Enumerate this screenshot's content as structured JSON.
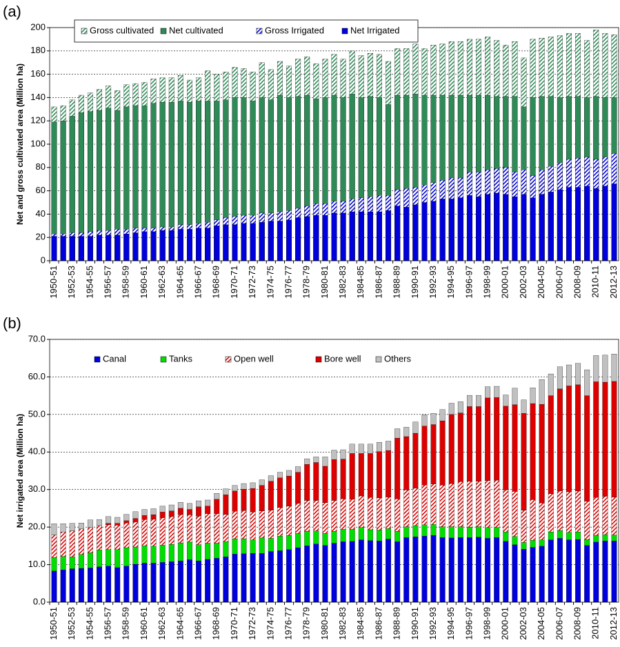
{
  "chart_data": [
    {
      "type": "bar",
      "barmode": "overlay",
      "panel_label": "(a)",
      "y_label": "Net and gross cultivated area (Million ha)",
      "categories": [
        "1950-51",
        null,
        "1952-53",
        null,
        "1954-55",
        null,
        "1956-57",
        null,
        "1958-59",
        null,
        "1960-61",
        null,
        "1962-63",
        null,
        "1964-65",
        null,
        "1966-67",
        null,
        "1968-69",
        null,
        "1970-71",
        null,
        "1972-73",
        null,
        "1974-75",
        null,
        "1976-77",
        null,
        "1978-79",
        null,
        "1980-81",
        null,
        "1982-83",
        null,
        "1984-85",
        null,
        "1986-87",
        null,
        "1988-89",
        null,
        "1990-91",
        null,
        "1992-93",
        null,
        "1994-95",
        null,
        "1996-97",
        null,
        "1998-99",
        null,
        "2000-01",
        null,
        "2002-03",
        null,
        "2004-05",
        null,
        "2006-07",
        null,
        "2008-09",
        null,
        "2010-11",
        null,
        "2012-13"
      ],
      "ylim": [
        0,
        200
      ],
      "yticks": [
        0,
        20,
        40,
        60,
        80,
        100,
        120,
        140,
        160,
        180,
        200
      ],
      "grid": true,
      "legend": "top",
      "legend_box": true,
      "series": [
        {
          "name": "Gross cultivated",
          "color": "#2e8b57",
          "hatched": true,
          "values": [
            132,
            133,
            138,
            142,
            144,
            147,
            150,
            146,
            151,
            152,
            153,
            156,
            157,
            157,
            159,
            155,
            157,
            163,
            160,
            162,
            166,
            165,
            162,
            170,
            164,
            171,
            167,
            173,
            175,
            169,
            173,
            177,
            173,
            180,
            176,
            178,
            177,
            171,
            182,
            182,
            186,
            182,
            185,
            186,
            188,
            188,
            190,
            190,
            192,
            189,
            185,
            188,
            174,
            190,
            191,
            192,
            193,
            195,
            195,
            189,
            198,
            195,
            194
          ]
        },
        {
          "name": "Net cultivated",
          "color": "#2e8b57",
          "hatched": false,
          "values": [
            119,
            120,
            124,
            127,
            128,
            129,
            131,
            129,
            132,
            133,
            133,
            135,
            136,
            136,
            137,
            136,
            137,
            137,
            137,
            138,
            140,
            140,
            137,
            140,
            138,
            142,
            140,
            141,
            142,
            139,
            140,
            142,
            140,
            143,
            140,
            141,
            140,
            134,
            142,
            142,
            143,
            142,
            142,
            142,
            142,
            142,
            142,
            142,
            142,
            141,
            141,
            141,
            132,
            140,
            141,
            141,
            140,
            141,
            141,
            140,
            141,
            140,
            140
          ]
        },
        {
          "name": "Gross Irrigated",
          "color": "#0000dd",
          "hatched": true,
          "values": [
            23,
            23,
            24,
            24,
            25,
            26,
            26,
            27,
            27,
            28,
            28,
            28,
            29,
            29,
            31,
            31,
            32,
            33,
            35,
            37,
            38,
            39,
            39,
            41,
            41,
            42,
            43,
            45,
            47,
            49,
            49,
            51,
            51,
            53,
            54,
            55,
            56,
            56,
            61,
            62,
            63,
            65,
            67,
            69,
            71,
            71,
            76,
            76,
            78,
            79,
            80,
            76,
            78,
            73,
            78,
            81,
            84,
            87,
            88,
            89,
            87,
            89,
            92
          ]
        },
        {
          "name": "Net Irrigated",
          "color": "#0000dd",
          "hatched": false,
          "values": [
            21,
            21,
            21,
            21,
            21,
            22,
            22,
            22,
            23,
            24,
            25,
            25,
            26,
            26,
            27,
            27,
            28,
            28,
            30,
            31,
            31,
            32,
            32,
            33,
            34,
            34,
            35,
            37,
            38,
            39,
            39,
            41,
            41,
            42,
            42,
            42,
            42,
            43,
            47,
            46,
            48,
            50,
            51,
            53,
            53,
            54,
            56,
            55,
            57,
            58,
            57,
            55,
            57,
            54,
            57,
            59,
            61,
            63,
            63,
            64,
            62,
            64,
            66
          ]
        }
      ]
    },
    {
      "type": "bar",
      "barmode": "stack",
      "panel_label": "(b)",
      "y_label": "Net irrigated  area (Million  ha)",
      "categories": [
        "1950-51",
        null,
        "1952-53",
        null,
        "1954-55",
        null,
        "1956-57",
        null,
        "1958-59",
        null,
        "1960-61",
        null,
        "1962-63",
        null,
        "1964-65",
        null,
        "1966-67",
        null,
        "1968-69",
        null,
        "1970-71",
        null,
        "1972-73",
        null,
        "1974-75",
        null,
        "1976-77",
        null,
        "1978-79",
        null,
        "1980-81",
        null,
        "1982-83",
        null,
        "1984-85",
        null,
        "1986-87",
        null,
        "1988-89",
        null,
        "1990-91",
        null,
        "1992-93",
        null,
        "1994-95",
        null,
        "1996-97",
        null,
        "1998-99",
        null,
        "2000-01",
        null,
        "2002-03",
        null,
        "2004-05",
        null,
        "2006-07",
        null,
        "2008-09",
        null,
        "2010-11",
        null,
        "2012-13"
      ],
      "ylim": [
        0,
        70
      ],
      "yticks": [
        {
          "value": 0,
          "label": "0.0"
        },
        {
          "value": 10,
          "label": "10.0"
        },
        {
          "value": 20,
          "label": "20.0"
        },
        {
          "value": 30,
          "label": "30.0"
        },
        {
          "value": 40,
          "label": "40.0"
        },
        {
          "value": 50,
          "label": "50.0"
        },
        {
          "value": 60,
          "label": "60.0"
        },
        {
          "value": 70,
          "label": "70.0"
        }
      ],
      "grid": true,
      "legend": "top",
      "legend_box": false,
      "series": [
        {
          "name": "Canal",
          "color": "#0000dd",
          "hatched": false,
          "values": [
            8.3,
            8.6,
            8.9,
            9.0,
            9.1,
            9.4,
            9.6,
            9.2,
            9.6,
            10.1,
            10.4,
            10.4,
            10.6,
            10.8,
            11.0,
            11.3,
            11.0,
            11.4,
            11.7,
            12.1,
            12.8,
            12.9,
            13.0,
            13.0,
            13.5,
            13.7,
            14.0,
            14.5,
            15.0,
            15.5,
            15.1,
            15.7,
            16.1,
            16.2,
            16.6,
            16.4,
            16.3,
            16.8,
            16.1,
            17.2,
            17.4,
            17.6,
            17.8,
            17.2,
            17.1,
            17.2,
            17.2,
            17.3,
            17.0,
            17.2,
            16.2,
            15.3,
            14.1,
            14.6,
            14.9,
            16.6,
            17.0,
            16.6,
            16.7,
            15.1,
            16.0,
            16.3,
            16.3
          ]
        },
        {
          "name": "Tanks",
          "color": "#00dd00",
          "hatched": false,
          "values": [
            3.6,
            3.6,
            3.2,
            3.7,
            4.1,
            4.5,
            4.4,
            4.8,
            4.9,
            4.6,
            4.6,
            4.5,
            4.6,
            4.6,
            4.8,
            4.7,
            4.3,
            4.3,
            4.0,
            4.0,
            4.1,
            4.0,
            3.6,
            4.1,
            3.5,
            3.9,
            3.8,
            3.8,
            3.9,
            3.5,
            3.2,
            3.2,
            3.3,
            3.2,
            3.3,
            2.9,
            2.9,
            2.8,
            2.8,
            2.9,
            3.0,
            3.0,
            2.9,
            2.9,
            3.0,
            2.9,
            2.8,
            2.8,
            2.9,
            2.7,
            2.5,
            2.2,
            1.8,
            1.9,
            1.7,
            2.1,
            2.1,
            2.0,
            2.0,
            1.6,
            1.8,
            1.7,
            1.6
          ]
        },
        {
          "name": "Open well",
          "color": "#dd0000",
          "hatched": true,
          "values": [
            6.0,
            6.5,
            6.9,
            6.8,
            6.7,
            6.5,
            6.6,
            6.5,
            6.6,
            6.7,
            7.0,
            7.2,
            7.3,
            7.4,
            7.5,
            7.3,
            7.6,
            7.9,
            7.9,
            7.3,
            7.3,
            7.5,
            7.4,
            7.2,
            7.5,
            7.6,
            7.8,
            8.0,
            8.2,
            8.1,
            8.2,
            8.2,
            8.1,
            8.0,
            8.4,
            8.6,
            8.6,
            8.4,
            8.6,
            9.8,
            10.0,
            10.6,
            10.8,
            11.1,
            11.5,
            12.0,
            12.2,
            12.1,
            12.5,
            12.6,
            11.2,
            12.0,
            8.6,
            10.8,
            9.8,
            10.2,
            10.5,
            10.8,
            10.9,
            10.2,
            10.1,
            10.2,
            10.1
          ]
        },
        {
          "name": "Bore well",
          "color": "#dd0000",
          "hatched": false,
          "values": [
            0,
            0,
            0,
            0,
            0,
            0,
            0.4,
            0.5,
            0.6,
            0.9,
            1.1,
            1.2,
            1.5,
            1.5,
            1.7,
            1.4,
            2.5,
            2.0,
            3.8,
            5.2,
            5.4,
            5.7,
            6.3,
            6.8,
            7.7,
            7.9,
            8.0,
            8.3,
            9.6,
            10.1,
            9.7,
            10.9,
            10.6,
            12.2,
            11.3,
            11.7,
            12.3,
            12.4,
            16.2,
            14.2,
            14.6,
            15.7,
            15.8,
            17.1,
            18.4,
            18.3,
            19.9,
            19.9,
            22.0,
            22.0,
            22.3,
            23.1,
            25.8,
            25.6,
            26.3,
            26.1,
            27.2,
            28.2,
            28.3,
            28.1,
            30.8,
            30.4,
            30.8
          ]
        },
        {
          "name": "Others",
          "color": "#c0c0c0",
          "hatched": false,
          "values": [
            3.0,
            2.2,
            2.0,
            1.6,
            2.0,
            1.6,
            1.8,
            1.6,
            1.7,
            1.8,
            1.6,
            1.6,
            1.6,
            1.6,
            1.6,
            1.6,
            1.6,
            1.6,
            1.6,
            1.6,
            1.5,
            1.5,
            1.5,
            1.5,
            1.5,
            1.5,
            1.5,
            1.5,
            1.5,
            1.5,
            2.5,
            2.5,
            2.5,
            2.5,
            2.5,
            2.5,
            2.5,
            2.5,
            2.5,
            2.5,
            3.0,
            3.0,
            3.0,
            3.0,
            3.0,
            3.0,
            3.0,
            3.0,
            3.0,
            3.0,
            3.0,
            4.4,
            3.6,
            4.2,
            6.6,
            5.8,
            5.9,
            5.6,
            5.7,
            6.9,
            7.0,
            7.2,
            7.3
          ]
        }
      ]
    }
  ]
}
